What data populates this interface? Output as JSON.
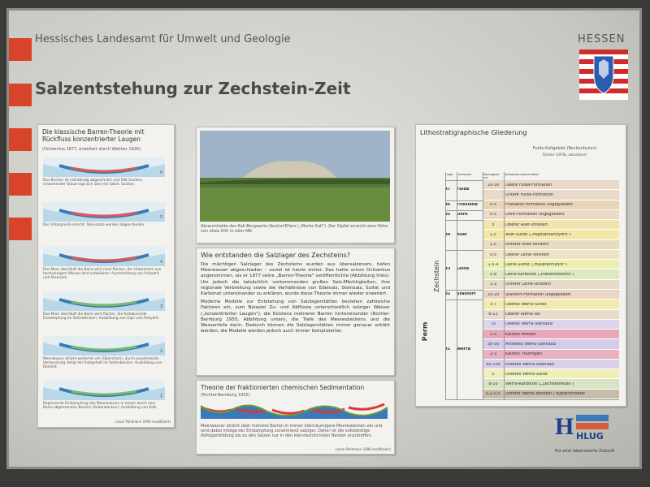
{
  "header": {
    "org": "Hessisches Landesamt für Umwelt und Geologie",
    "title": "Salzentstehung zur Zechstein-Zeit",
    "state": "HESSEN"
  },
  "barren": {
    "title": "Die klassische Barren-Theorie mit Rückfluss konzentrierter Laugen",
    "subtitle": "(Ochsenius 1877, erweitert durch Walther 1926)",
    "steps": [
      {
        "number": "6",
        "caption": "Das Becken ist vollständig abgeschnürt und fällt trocken; einwehender Staub legt sich über die Salze: Salzton."
      },
      {
        "number": "5",
        "caption": "Der Untergrund erlischt: Steinsalze werden abgeschieden."
      },
      {
        "number": "4",
        "caption": "Das Meer überläuft die Barre wird noch flacher, der Unterstrom von hochsalzigem Wasser wird schwächer: Ausscheidung von Anhydrit und Steinsalz."
      },
      {
        "number": "3",
        "caption": "Das Meer überläuft die Barre wird flacher, die fortdauernde Eindampfung im Seitenbecken: Ausbildung von Gips und Anhydrit."
      },
      {
        "number": "2",
        "caption": "Meerwasser strömt weiterhin ein (Überstrom), durch zunehmende Verdunstung steigt der Salzgehalt im Seitenbecken: Ausbildung von Dolomit."
      },
      {
        "number": "1",
        "caption": "Beginnende Eindampfung des Meerwassers in einem durch eine Barre abgetrennten Becken (Seitenbecken): Ausbildung von Kalk."
      }
    ],
    "source": "(nach Pohlmann 1990 modifiziert)"
  },
  "photo": {
    "caption": "Abraumhalde des Kali-Bergwerks Neuhof-Ellers („Monte Kali\"). Der Gipfel erreicht eine Höhe von etwa 500 m über NN."
  },
  "article": {
    "title": "Wie entstanden die Salzlager des Zechsteins?",
    "paragraphs": [
      "Die mächtigen Salzlager des Zechsteins wurden aus übersalzenem, tiefen Meerwasser abgeschieden – soviel ist heute sicher. Das hatte schon Ochsenius angenommen, als er 1877 seine „Barren-Theorie\" veröffentlichte (Abbildung links). Um jedoch die tatsächlich vorkommenden großen Salz-Mächtigkeiten, ihre regionale Verbreitung sowie die Verhältnisse von Edelsalz, Steinsalz, Sulfat und Karbonat untereinander zu erklären, wurde diese Theorie immer wieder erweitert.",
      "Moderne Modelle zur Entstehung von Salzlagerstätten beziehen zahlreiche Faktoren ein, zum Beispiel Zu- und Abflüsse unterschiedlich salziger Wässer („konzentrierter Laugen\"), die Existenz mehrerer Barren hintereinander (Richter-Bernburg 1955, Abbildung unten), die Tiefe des Meeresbeckens und die Wassertiefe darin. Dadurch können die Salzlagerstätten immer genauer erklärt werden, die Modelle werden jedoch auch immer komplizierter."
    ]
  },
  "fraktion": {
    "title": "Theorie der fraktionierten chemischen Sedimentation",
    "subtitle": "(Richter-Bernburg 1955)",
    "caption": "Meerwasser strömt über mehrere Barren in immer kleinräumigere Meeresbecken ein und wird dabei infolge der Eindampfung zunehmend salziger. Daher ist die vollständige Abfolgenbildung bis zu den Salzen nur in den kleinräumlichsten Becken anzutreffen.",
    "source": "(nach Pohlmann 1990 modifiziert)"
  },
  "strat": {
    "title": "Lithostratigraphische Gliederung",
    "region": "Fulda-Kaligebiet (Beckenfazies)",
    "reference": "Richter (1978), aktualisiert",
    "system": "Perm",
    "group": "Zechstein",
    "columns": [
      "Folge",
      "Formation",
      "Mächtigkeit (m)",
      "Formation/Subformation"
    ],
    "sequences": [
      {
        "folge": "z7",
        "formation": "Fulda",
        "units": [
          {
            "thickness": "10-30",
            "name": "Obere Fulda-Formation",
            "color": "#e9d9c8"
          },
          {
            "thickness": "",
            "name": "Untere Fulda-Formation",
            "color": "#e9d9c8"
          }
        ]
      },
      {
        "folge": "z6",
        "formation": "Friesland",
        "units": [
          {
            "thickness": "0-5",
            "name": "Friesland-Formation ungegliedert",
            "color": "#e9d4b8"
          }
        ]
      },
      {
        "folge": "z5",
        "formation": "Ohre",
        "units": [
          {
            "thickness": "0-5",
            "name": "Ohre-Formation ungegliedert",
            "color": "#eadbc4"
          }
        ]
      },
      {
        "folge": "z4",
        "formation": "Aller",
        "units": [
          {
            "thickness": "5",
            "name": "Oberer Aller-Tonstein",
            "color": "#f3e3b0"
          },
          {
            "thickness": "1,5",
            "name": "Aller-Sulfat („Pegmatitanhydrit\")",
            "color": "#f2e8a8"
          },
          {
            "thickness": "1,5",
            "name": "Unterer Aller-Tonstein",
            "color": "#e8dcc0"
          }
        ]
      },
      {
        "folge": "z3",
        "formation": "Leine",
        "units": [
          {
            "thickness": "0-5",
            "name": "Oberer Leine-Tonstein",
            "color": "#f0e2c4"
          },
          {
            "thickness": "1,5-4",
            "name": "Leine-Sulfat („Hauptanhydrit\")",
            "color": "#eef0b0"
          },
          {
            "thickness": "5-8",
            "name": "Leine-Karbonat („Plattendolomit\")",
            "color": "#dfe8c0"
          },
          {
            "thickness": "1-3",
            "name": "Unterer Leine-Tonstein",
            "color": "#e8dcc8"
          }
        ]
      },
      {
        "folge": "z2",
        "formation": "Staßfurt",
        "units": [
          {
            "thickness": "10-20",
            "name": "Staßfurt-Formation ungegliedert",
            "color": "#ecd4c4"
          }
        ]
      },
      {
        "folge": "z1",
        "formation": "Werra",
        "units": [
          {
            "thickness": "3-7",
            "name": "Oberes Werra-Sulfat",
            "color": "#f0ecb0"
          },
          {
            "thickness": "8-13",
            "name": "Oberer Werra-Ton",
            "color": "#eadccc"
          },
          {
            "thickness": "70",
            "name": "Oberes Werra-Steinsalz",
            "color": "#dcd4ec"
          },
          {
            "thickness": "2-3",
            "name": "Kaliflöz Hessen",
            "color": "#e8a8b8"
          },
          {
            "thickness": "30-50",
            "name": "Mittleres Werra-Steinsalz",
            "color": "#d4cce8"
          },
          {
            "thickness": "2-3",
            "name": "Kaliflöz Thüringen",
            "color": "#e8b0c0"
          },
          {
            "thickness": "40-100",
            "name": "Unteres Werra-Steinsalz",
            "color": "#d8d0ea"
          },
          {
            "thickness": "5",
            "name": "Unteres Werra-Sulfat",
            "color": "#eef0b8"
          },
          {
            "thickness": "8-20",
            "name": "Werra-Karbonat („Zechsteinkalk\")",
            "color": "#d8e4c4"
          },
          {
            "thickness": "0,2-0,5",
            "name": "Unterer Werra-Tonstein / Kupferschiefer",
            "color": "#c8bca8"
          }
        ]
      }
    ]
  },
  "logo": {
    "name": "HLUG",
    "tagline": "Für eine lebenswerte Zukunft"
  }
}
